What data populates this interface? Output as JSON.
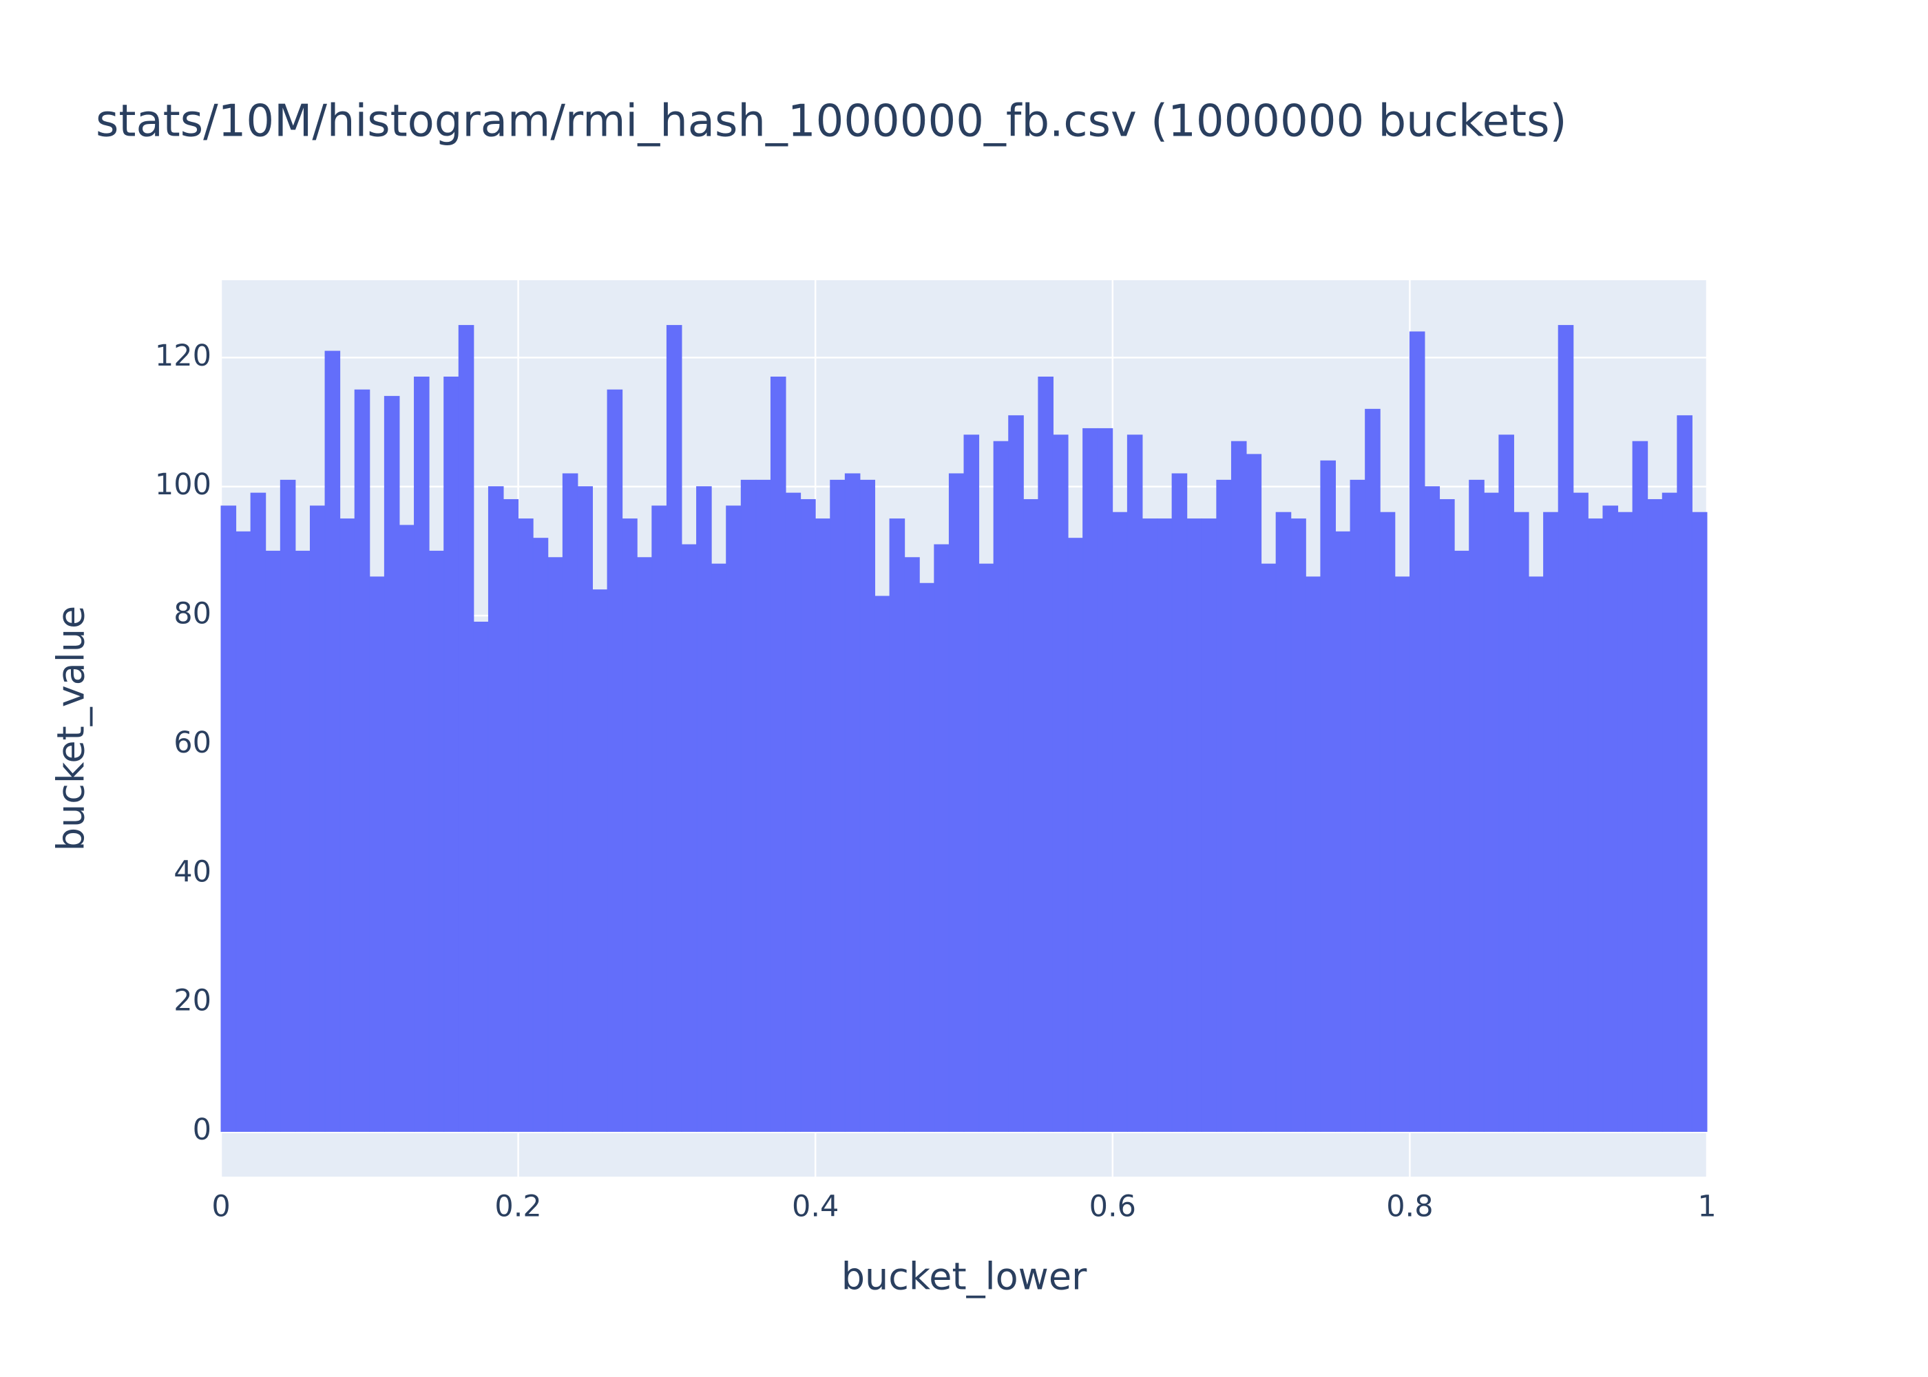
{
  "chart_data": {
    "type": "histogram",
    "title": "stats/10M/histogram/rmi_hash_1000000_fb.csv (1000000 buckets)",
    "x_label": "bucket_lower",
    "y_label": "bucket_value",
    "bins": [
      0,
      0.01,
      0.02,
      0.03,
      0.04,
      0.05,
      0.06,
      0.07,
      0.08,
      0.09,
      0.1,
      0.11,
      0.12,
      0.13,
      0.14,
      0.15,
      0.16,
      0.17,
      0.18,
      0.19,
      0.2,
      0.21,
      0.22,
      0.23,
      0.24,
      0.25,
      0.26,
      0.27,
      0.28,
      0.29,
      0.3,
      0.31,
      0.32,
      0.33,
      0.34,
      0.35,
      0.36,
      0.37,
      0.38,
      0.39,
      0.4,
      0.41,
      0.42,
      0.43,
      0.44,
      0.45,
      0.46,
      0.47,
      0.48,
      0.49,
      0.5,
      0.51,
      0.52,
      0.53,
      0.54,
      0.55,
      0.56,
      0.57,
      0.58,
      0.59,
      0.6,
      0.61,
      0.62,
      0.63,
      0.64,
      0.65,
      0.66,
      0.67,
      0.68,
      0.69,
      0.7,
      0.71,
      0.72,
      0.73,
      0.74,
      0.75,
      0.76,
      0.77,
      0.78,
      0.79,
      0.8,
      0.81,
      0.82,
      0.83,
      0.84,
      0.85,
      0.86,
      0.87,
      0.88,
      0.89,
      0.9,
      0.91,
      0.92,
      0.93,
      0.94,
      0.95,
      0.96,
      0.97,
      0.98,
      0.99,
      1
    ],
    "values": [
      97,
      93,
      99,
      90,
      101,
      90,
      97,
      121,
      95,
      115,
      86,
      114,
      94,
      117,
      90,
      117,
      125,
      79,
      100,
      98,
      95,
      92,
      89,
      102,
      100,
      84,
      115,
      95,
      89,
      97,
      125,
      91,
      100,
      88,
      97,
      101,
      101,
      117,
      99,
      98,
      95,
      101,
      102,
      101,
      83,
      95,
      89,
      85,
      91,
      102,
      108,
      88,
      107,
      111,
      98,
      117,
      108,
      92,
      109,
      109,
      96,
      108,
      95,
      95,
      102,
      95,
      95,
      101,
      107,
      105,
      88,
      96,
      95,
      86,
      104,
      93,
      101,
      112,
      96,
      86,
      124,
      100,
      98,
      90,
      101,
      99,
      108,
      96,
      86,
      96,
      125,
      99,
      95,
      97,
      96,
      107,
      98,
      99,
      111,
      96
    ],
    "color": "#636efa",
    "xlim": [
      0,
      1
    ],
    "xticks": [
      0,
      0.2,
      0.4,
      0.6,
      0.8,
      1
    ],
    "ylim": [
      -7,
      132
    ],
    "yticks": [
      0,
      20,
      40,
      60,
      80,
      100,
      120
    ],
    "grid": true
  }
}
